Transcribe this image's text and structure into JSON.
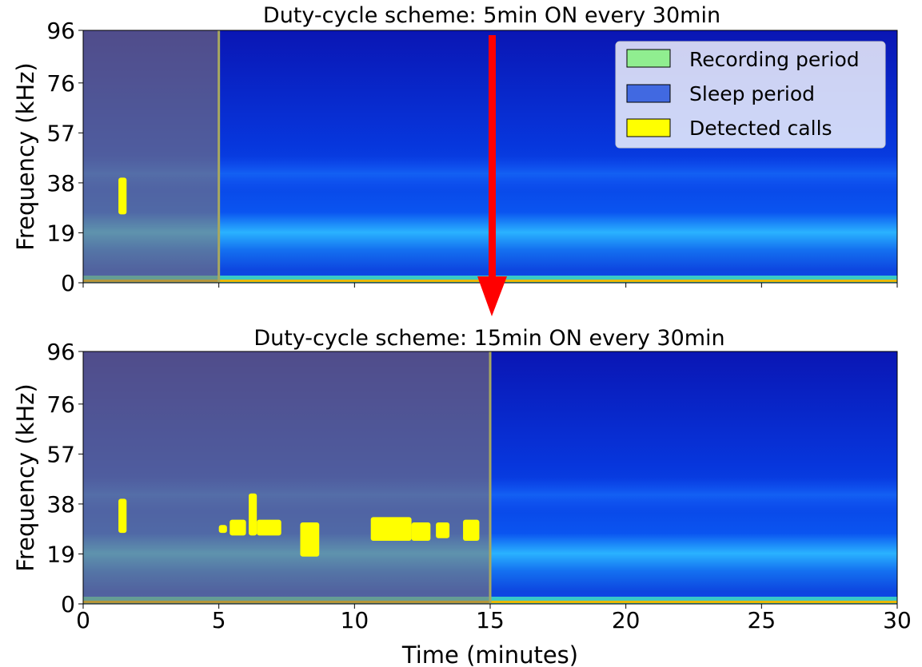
{
  "chart_data": {
    "type": "heatmap",
    "xlabel": "Time (minutes)",
    "x_range": [
      0,
      30
    ],
    "x_ticks": [
      0,
      5,
      10,
      15,
      20,
      25,
      30
    ],
    "y_range": [
      0,
      96
    ],
    "y_ticks": [
      0,
      19,
      38,
      57,
      76,
      96
    ],
    "colors": {
      "recording": "#90ee90",
      "sleep": "#4169e1",
      "calls": "#ffff00",
      "arrow": "#ff0000",
      "spectrogram_bg": "#0022c8",
      "noise_band": "#2aa8ff"
    },
    "arrow": {
      "from_panel": 0,
      "to_panel": 1,
      "x": 15
    },
    "legend": {
      "position": "top-right",
      "entries": [
        {
          "label": "Recording period",
          "color": "#90ee90"
        },
        {
          "label": "Sleep period",
          "color": "#4169e1"
        },
        {
          "label": "Detected calls",
          "color": "#ffff00"
        }
      ]
    },
    "panels": [
      {
        "title": "Duty-cycle scheme: 5min ON every 30min",
        "ylabel": "Frequency (kHz)",
        "recording_period": [
          0,
          5
        ],
        "detected_calls": [
          {
            "t": [
              1.3,
              1.6
            ],
            "f": [
              26,
              40
            ]
          }
        ]
      },
      {
        "title": "Duty-cycle scheme: 15min ON every 30min",
        "ylabel": "Frequency (kHz)",
        "recording_period": [
          0,
          15
        ],
        "detected_calls": [
          {
            "t": [
              1.3,
              1.6
            ],
            "f": [
              27,
              40
            ]
          },
          {
            "t": [
              5.0,
              5.3
            ],
            "f": [
              27,
              30
            ]
          },
          {
            "t": [
              5.4,
              6.0
            ],
            "f": [
              26,
              32
            ]
          },
          {
            "t": [
              6.1,
              6.4
            ],
            "f": [
              26,
              42
            ]
          },
          {
            "t": [
              6.4,
              7.3
            ],
            "f": [
              26,
              32
            ]
          },
          {
            "t": [
              8.0,
              8.7
            ],
            "f": [
              18,
              31
            ]
          },
          {
            "t": [
              10.6,
              12.1
            ],
            "f": [
              24,
              33
            ]
          },
          {
            "t": [
              12.1,
              12.8
            ],
            "f": [
              24,
              31
            ]
          },
          {
            "t": [
              13.0,
              13.5
            ],
            "f": [
              25,
              31
            ]
          },
          {
            "t": [
              14.0,
              14.6
            ],
            "f": [
              24,
              32
            ]
          }
        ]
      }
    ]
  }
}
